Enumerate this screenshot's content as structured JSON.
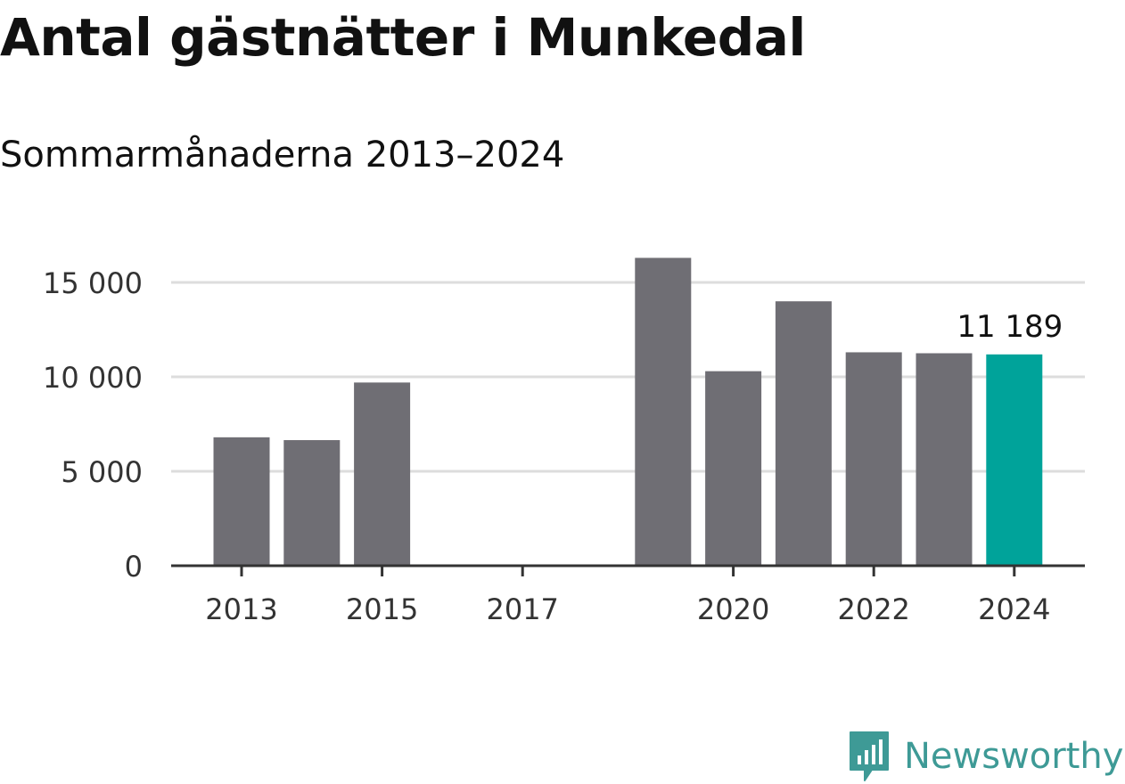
{
  "header": {
    "title": "Antal gästnätter i Munkedal",
    "subtitle": "Sommarmånaderna 2013–2024"
  },
  "branding": {
    "name": "Newsworthy",
    "color": "#3e9a96"
  },
  "colors": {
    "bar": "#6f6e74",
    "highlight": "#00a39a",
    "grid": "#dddddd",
    "axis": "#333333"
  },
  "chart_data": {
    "type": "bar",
    "title": "Antal gästnätter i Munkedal",
    "subtitle": "Sommarmånaderna 2013–2024",
    "x": [
      2013,
      2014,
      2015,
      2016,
      2017,
      2018,
      2019,
      2020,
      2021,
      2022,
      2023,
      2024
    ],
    "values": [
      6800,
      6650,
      9700,
      null,
      null,
      null,
      16300,
      10300,
      14000,
      11300,
      11250,
      11189
    ],
    "highlight_index": 11,
    "value_labels": [
      {
        "index": 11,
        "text": "11 189"
      }
    ],
    "xticks": [
      2013,
      2015,
      2017,
      2020,
      2022,
      2024
    ],
    "xtick_labels": [
      "2013",
      "2015",
      "2017",
      "2020",
      "2022",
      "2024"
    ],
    "yticks": [
      0,
      5000,
      10000,
      15000
    ],
    "ytick_labels": [
      "0",
      "5 000",
      "10 000",
      "15 000"
    ],
    "ylim": [
      0,
      16300
    ],
    "xlabel": "",
    "ylabel": "",
    "grid": true,
    "legend": false
  }
}
